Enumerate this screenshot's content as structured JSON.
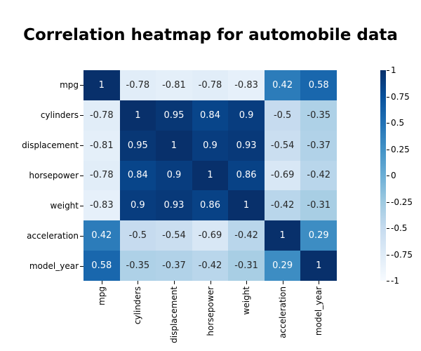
{
  "figure": {
    "background": "#ffffff"
  },
  "title": {
    "text": "Correlation heatmap for automobile data",
    "color": "#000000"
  },
  "chart_data": {
    "type": "heatmap",
    "title": "Correlation heatmap for automobile data",
    "categories": [
      "mpg",
      "cylinders",
      "displacement",
      "horsepower",
      "weight",
      "acceleration",
      "model_year"
    ],
    "matrix": [
      [
        1,
        -0.78,
        -0.81,
        -0.78,
        -0.83,
        0.42,
        0.58
      ],
      [
        -0.78,
        1,
        0.95,
        0.84,
        0.9,
        -0.5,
        -0.35
      ],
      [
        -0.81,
        0.95,
        1,
        0.9,
        0.93,
        -0.54,
        -0.37
      ],
      [
        -0.78,
        0.84,
        0.9,
        1,
        0.86,
        -0.69,
        -0.42
      ],
      [
        -0.83,
        0.9,
        0.93,
        0.86,
        1,
        -0.42,
        -0.31
      ],
      [
        0.42,
        -0.5,
        -0.54,
        -0.69,
        -0.42,
        1,
        0.29
      ],
      [
        0.58,
        -0.35,
        -0.37,
        -0.42,
        -0.31,
        0.29,
        1
      ]
    ],
    "vmin": -1,
    "vmax": 1,
    "colormap": "Blues",
    "colormap_stops": [
      "#f7fbff",
      "#deebf7",
      "#c6dbef",
      "#9ecae1",
      "#6baed6",
      "#4292c6",
      "#2171b5",
      "#08519c",
      "#08306b"
    ],
    "annot_text_dark": "#262626",
    "annot_text_light": "#ffffff",
    "tick_color": "#000000",
    "legend_position": "right",
    "grid": false,
    "colorbar": {
      "ticks": [
        {
          "value": 1,
          "label": "1"
        },
        {
          "value": 0.75,
          "label": "0.75"
        },
        {
          "value": 0.5,
          "label": "0.5"
        },
        {
          "value": 0.25,
          "label": "0.25"
        },
        {
          "value": 0,
          "label": "0"
        },
        {
          "value": -0.25,
          "label": "-0.25"
        },
        {
          "value": -0.5,
          "label": "-0.5"
        },
        {
          "value": -0.75,
          "label": "-0.75"
        },
        {
          "value": -1,
          "label": "-1"
        }
      ]
    }
  }
}
